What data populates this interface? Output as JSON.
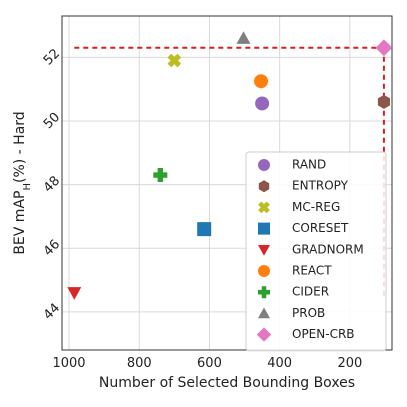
{
  "chart_data": {
    "type": "scatter",
    "xlabel": "Number of Selected Bounding Boxes",
    "ylabel": "BEV mAP_H(%) - Hard",
    "xlim": [
      1020,
      80
    ],
    "ylim": [
      42.8,
      53.3
    ],
    "x_axis_reversed": true,
    "grid": true,
    "legend_position": "lower-right",
    "xticks": [
      1000,
      800,
      600,
      400,
      200
    ],
    "xtick_labels": [
      "1000",
      "800",
      "600",
      "400",
      "200"
    ],
    "yticks": [
      44,
      46,
      48,
      50,
      52
    ],
    "ytick_labels": [
      "44",
      "46",
      "48",
      "50",
      "52"
    ],
    "series": [
      {
        "name": "RAND",
        "color": "#9467bd",
        "marker": "circle",
        "points": [
          {
            "x": 450,
            "y": 50.55
          }
        ]
      },
      {
        "name": "ENTROPY",
        "color": "#8c564b",
        "marker": "hexagon",
        "points": [
          {
            "x": 103,
            "y": 50.6
          }
        ]
      },
      {
        "name": "MC-REG",
        "color": "#bcbd22",
        "marker": "x",
        "points": [
          {
            "x": 700,
            "y": 51.9
          }
        ]
      },
      {
        "name": "CORESET",
        "color": "#1f77b4",
        "marker": "square",
        "points": [
          {
            "x": 615,
            "y": 46.6
          }
        ]
      },
      {
        "name": "GRADNORM",
        "color": "#d62728",
        "marker": "triangle-down",
        "points": [
          {
            "x": 985,
            "y": 44.6
          }
        ]
      },
      {
        "name": "REACT",
        "color": "#ff7f0e",
        "marker": "circle",
        "points": [
          {
            "x": 453,
            "y": 51.25
          }
        ]
      },
      {
        "name": "CIDER",
        "color": "#2ca02c",
        "marker": "plus",
        "points": [
          {
            "x": 740,
            "y": 48.3
          }
        ]
      },
      {
        "name": "PROB",
        "color": "#7f7f7f",
        "marker": "triangle-up",
        "points": [
          {
            "x": 503,
            "y": 52.6
          }
        ]
      },
      {
        "name": "OPEN-CRB",
        "color": "#e377c2",
        "marker": "diamond",
        "points": [
          {
            "x": 103,
            "y": 52.3
          }
        ]
      }
    ],
    "reference_lines": [
      {
        "style": "dashed",
        "color": "#e31a1c",
        "points": [
          {
            "x": 985,
            "y": 52.3
          },
          {
            "x": 103,
            "y": 52.3
          }
        ]
      },
      {
        "style": "dashed",
        "color": "#e31a1c",
        "points": [
          {
            "x": 103,
            "y": 52.3
          },
          {
            "x": 103,
            "y": 44.5
          }
        ]
      }
    ]
  }
}
